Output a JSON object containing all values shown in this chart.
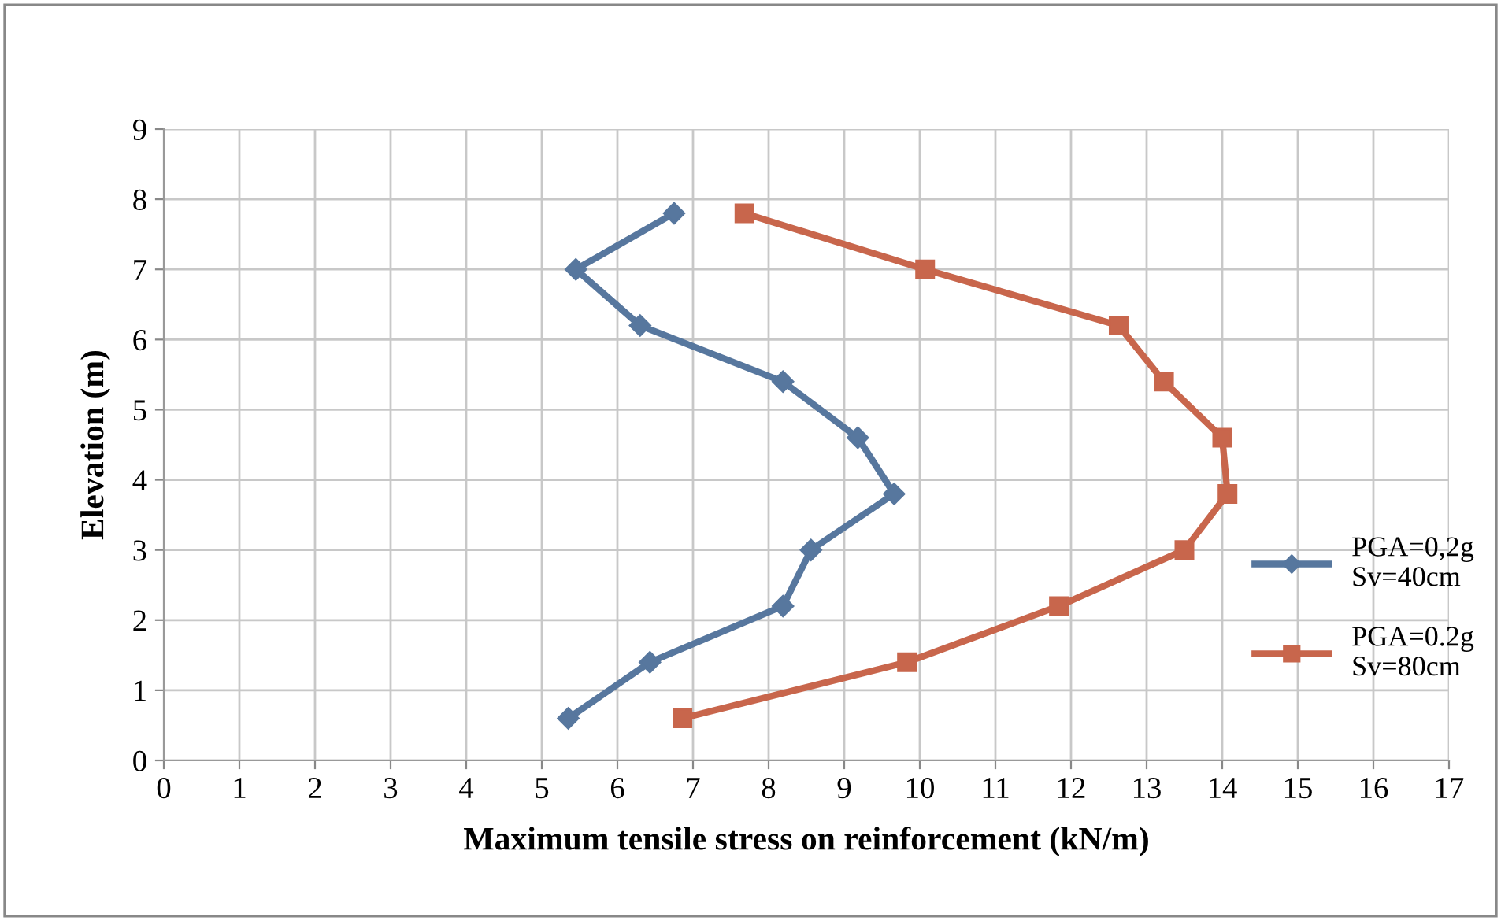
{
  "chart_data": {
    "type": "line",
    "xlabel": "Maximum tensile stress on reinforcement (kN/m)",
    "ylabel": "Elevation (m)",
    "xlim": [
      0,
      17
    ],
    "xticks": [
      0,
      1,
      2,
      3,
      4,
      5,
      6,
      7,
      8,
      9,
      10,
      11,
      12,
      13,
      14,
      15,
      16,
      17
    ],
    "ylim": [
      0,
      9
    ],
    "yticks": [
      0,
      1,
      2,
      3,
      4,
      5,
      6,
      7,
      8,
      9
    ],
    "grid": true,
    "legend": "right",
    "line_style": "solid",
    "series": [
      {
        "name": "PGA=0,2g\nSv=40cm",
        "color": "#57779e",
        "marker": "diamond",
        "x": [
          6.75,
          5.45,
          6.3,
          8.19,
          9.18,
          9.66,
          8.56,
          8.19,
          6.43,
          5.35
        ],
        "values": [
          7.8,
          7.0,
          6.2,
          5.4,
          4.6,
          3.8,
          3.0,
          2.2,
          1.4,
          0.6
        ]
      },
      {
        "name": "PGA=0.2g\nSv=80cm",
        "color": "#c8664c",
        "marker": "square",
        "x": [
          7.68,
          10.07,
          12.63,
          13.23,
          14.0,
          14.07,
          13.5,
          11.84,
          9.83,
          6.86
        ],
        "values": [
          7.8,
          7.0,
          6.2,
          5.4,
          4.6,
          3.8,
          3.0,
          2.2,
          1.4,
          0.6
        ]
      }
    ]
  }
}
